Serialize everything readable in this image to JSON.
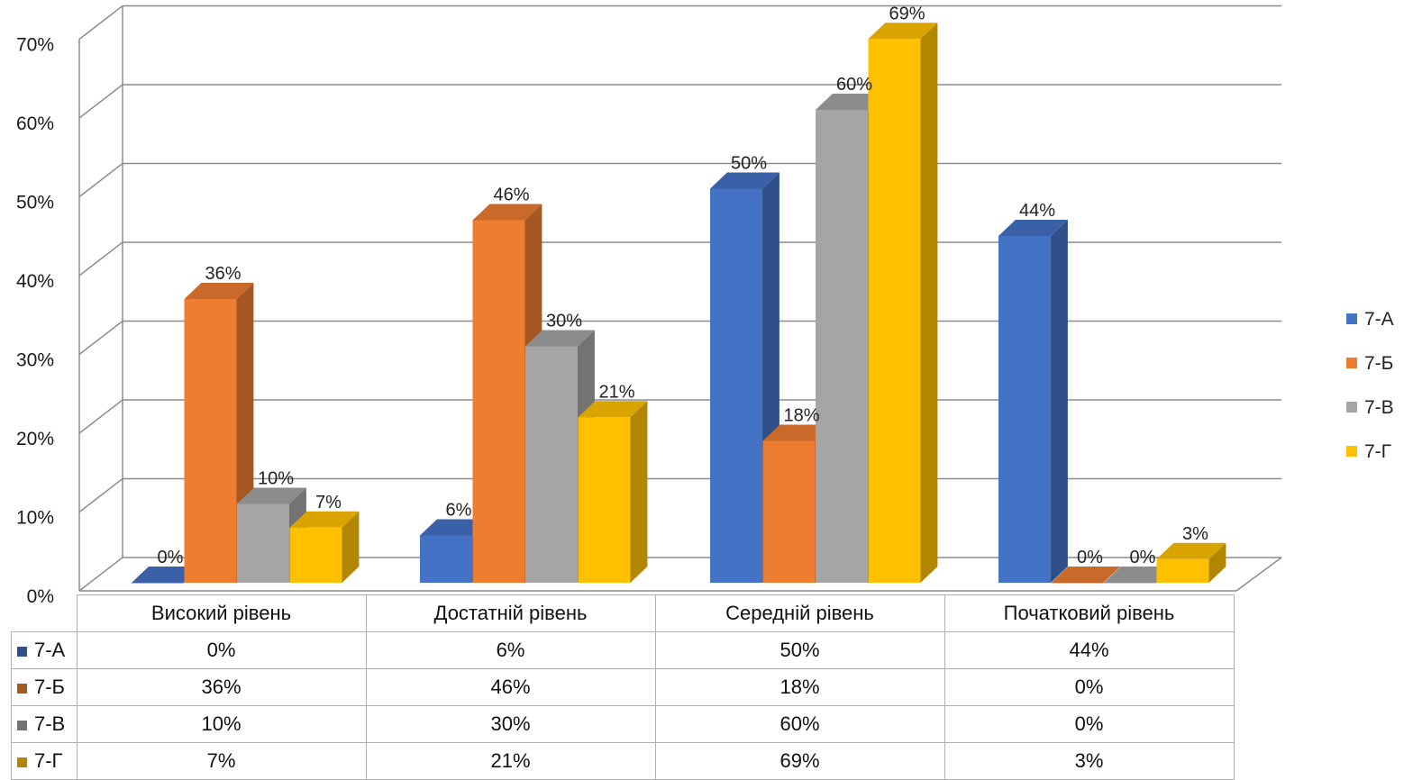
{
  "chart_data": {
    "type": "bar",
    "title": "",
    "xlabel": "",
    "ylabel": "",
    "ylim": [
      0,
      70
    ],
    "yticks": [
      "0%",
      "10%",
      "20%",
      "30%",
      "40%",
      "50%",
      "60%",
      "70%"
    ],
    "grid": true,
    "legend": "right",
    "categories": [
      "Високий рівень",
      "Достатній рівень",
      "Середній рівень",
      "Початковий рівень"
    ],
    "series": [
      {
        "name": "7-А",
        "color": "#4472c4",
        "values": [
          0,
          6,
          50,
          44
        ],
        "labels": [
          "0%",
          "6%",
          "50%",
          "44%"
        ]
      },
      {
        "name": "7-Б",
        "color": "#ed7d31",
        "values": [
          36,
          46,
          18,
          0
        ],
        "labels": [
          "36%",
          "46%",
          "18%",
          "0%"
        ]
      },
      {
        "name": "7-В",
        "color": "#a5a5a5",
        "values": [
          10,
          30,
          60,
          0
        ],
        "labels": [
          "10%",
          "30%",
          "60%",
          "0%"
        ]
      },
      {
        "name": "7-Г",
        "color": "#ffc000",
        "values": [
          7,
          21,
          69,
          3
        ],
        "labels": [
          "7%",
          "21%",
          "69%",
          "3%"
        ]
      }
    ]
  }
}
